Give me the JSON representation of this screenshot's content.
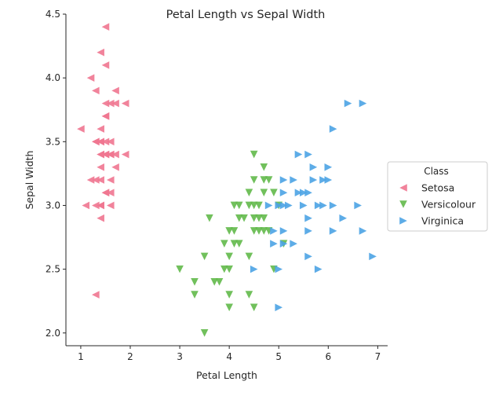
{
  "chart_data": {
    "type": "scatter",
    "title": "Petal Length vs Sepal Width",
    "xlabel": "Petal Length",
    "ylabel": "Sepal Width",
    "xlim": [
      0.7,
      7.2
    ],
    "ylim": [
      1.9,
      4.5
    ],
    "xticks": [
      1,
      2,
      3,
      4,
      5,
      6,
      7
    ],
    "yticks": [
      2.0,
      2.5,
      3.0,
      3.5,
      4.0,
      4.5
    ],
    "xtick_labels": [
      "1",
      "2",
      "3",
      "4",
      "5",
      "6",
      "7"
    ],
    "ytick_labels": [
      "2.0",
      "2.5",
      "3.0",
      "3.5",
      "4.0",
      "4.5"
    ],
    "grid": false,
    "legend": {
      "title": "Class",
      "placement": "center-right outside"
    },
    "series": [
      {
        "name": "Setosa",
        "color": "#f07590",
        "marker": "triangle-left",
        "points": [
          [
            1.5,
            4.4
          ],
          [
            1.4,
            4.2
          ],
          [
            1.5,
            4.1
          ],
          [
            1.2,
            4.0
          ],
          [
            1.3,
            3.9
          ],
          [
            1.7,
            3.9
          ],
          [
            1.5,
            3.8
          ],
          [
            1.6,
            3.8
          ],
          [
            1.7,
            3.8
          ],
          [
            1.9,
            3.8
          ],
          [
            1.5,
            3.7
          ],
          [
            1.5,
            3.7
          ],
          [
            1.0,
            3.6
          ],
          [
            1.4,
            3.6
          ],
          [
            1.3,
            3.5
          ],
          [
            1.4,
            3.5
          ],
          [
            1.5,
            3.5
          ],
          [
            1.6,
            3.5
          ],
          [
            1.3,
            3.5
          ],
          [
            1.4,
            3.5
          ],
          [
            1.5,
            3.4
          ],
          [
            1.4,
            3.4
          ],
          [
            1.6,
            3.4
          ],
          [
            1.7,
            3.4
          ],
          [
            1.9,
            3.4
          ],
          [
            1.5,
            3.4
          ],
          [
            1.4,
            3.4
          ],
          [
            1.6,
            3.4
          ],
          [
            1.4,
            3.3
          ],
          [
            1.7,
            3.3
          ],
          [
            1.2,
            3.2
          ],
          [
            1.3,
            3.2
          ],
          [
            1.4,
            3.2
          ],
          [
            1.6,
            3.2
          ],
          [
            1.5,
            3.1
          ],
          [
            1.6,
            3.1
          ],
          [
            1.5,
            3.1
          ],
          [
            1.1,
            3.0
          ],
          [
            1.3,
            3.0
          ],
          [
            1.4,
            3.0
          ],
          [
            1.6,
            3.0
          ],
          [
            1.4,
            3.0
          ],
          [
            1.4,
            2.9
          ],
          [
            1.3,
            2.3
          ]
        ]
      },
      {
        "name": "Versicolour",
        "color": "#62b94a",
        "marker": "triangle-down",
        "points": [
          [
            4.5,
            3.4
          ],
          [
            4.7,
            3.3
          ],
          [
            4.5,
            3.2
          ],
          [
            4.7,
            3.2
          ],
          [
            4.8,
            3.2
          ],
          [
            4.4,
            3.1
          ],
          [
            4.7,
            3.1
          ],
          [
            4.9,
            3.1
          ],
          [
            4.1,
            3.0
          ],
          [
            4.2,
            3.0
          ],
          [
            4.4,
            3.0
          ],
          [
            4.5,
            3.0
          ],
          [
            4.6,
            3.0
          ],
          [
            5.0,
            3.0
          ],
          [
            4.2,
            2.9
          ],
          [
            4.3,
            2.9
          ],
          [
            4.5,
            2.9
          ],
          [
            4.6,
            2.9
          ],
          [
            3.6,
            2.9
          ],
          [
            4.7,
            2.9
          ],
          [
            4.0,
            2.8
          ],
          [
            4.1,
            2.8
          ],
          [
            4.5,
            2.8
          ],
          [
            4.6,
            2.8
          ],
          [
            4.7,
            2.8
          ],
          [
            4.8,
            2.8
          ],
          [
            3.9,
            2.7
          ],
          [
            4.1,
            2.7
          ],
          [
            4.2,
            2.7
          ],
          [
            5.1,
            2.7
          ],
          [
            3.5,
            2.6
          ],
          [
            4.0,
            2.6
          ],
          [
            4.4,
            2.6
          ],
          [
            3.0,
            2.5
          ],
          [
            3.9,
            2.5
          ],
          [
            4.0,
            2.5
          ],
          [
            4.9,
            2.5
          ],
          [
            3.3,
            2.4
          ],
          [
            3.7,
            2.4
          ],
          [
            3.8,
            2.4
          ],
          [
            3.3,
            2.3
          ],
          [
            4.0,
            2.3
          ],
          [
            4.4,
            2.3
          ],
          [
            4.0,
            2.2
          ],
          [
            4.5,
            2.2
          ],
          [
            3.5,
            2.0
          ]
        ]
      },
      {
        "name": "Virginica",
        "color": "#4ba3e4",
        "marker": "triangle-right",
        "points": [
          [
            6.4,
            3.8
          ],
          [
            6.7,
            3.8
          ],
          [
            6.1,
            3.6
          ],
          [
            5.4,
            3.4
          ],
          [
            5.6,
            3.4
          ],
          [
            5.7,
            3.3
          ],
          [
            6.0,
            3.3
          ],
          [
            5.3,
            3.2
          ],
          [
            5.1,
            3.2
          ],
          [
            5.9,
            3.2
          ],
          [
            6.0,
            3.2
          ],
          [
            5.7,
            3.2
          ],
          [
            5.4,
            3.1
          ],
          [
            5.5,
            3.1
          ],
          [
            5.6,
            3.1
          ],
          [
            5.1,
            3.1
          ],
          [
            4.8,
            3.0
          ],
          [
            5.0,
            3.0
          ],
          [
            5.1,
            3.0
          ],
          [
            5.2,
            3.0
          ],
          [
            5.5,
            3.0
          ],
          [
            5.8,
            3.0
          ],
          [
            5.9,
            3.0
          ],
          [
            6.1,
            3.0
          ],
          [
            6.6,
            3.0
          ],
          [
            5.6,
            2.9
          ],
          [
            6.3,
            2.9
          ],
          [
            4.9,
            2.8
          ],
          [
            5.1,
            2.8
          ],
          [
            5.6,
            2.8
          ],
          [
            6.1,
            2.8
          ],
          [
            6.7,
            2.8
          ],
          [
            4.9,
            2.7
          ],
          [
            5.1,
            2.7
          ],
          [
            5.3,
            2.7
          ],
          [
            5.6,
            2.6
          ],
          [
            6.9,
            2.6
          ],
          [
            4.5,
            2.5
          ],
          [
            5.0,
            2.5
          ],
          [
            5.8,
            2.5
          ],
          [
            5.0,
            2.2
          ]
        ]
      }
    ]
  }
}
